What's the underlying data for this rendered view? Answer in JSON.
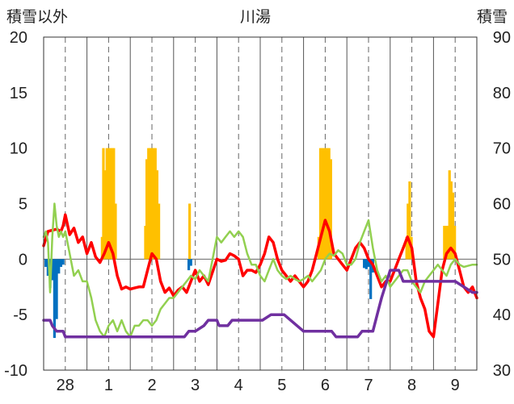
{
  "chart_data": {
    "type": "line",
    "title": "川湯",
    "y_left_label": "積雪以外",
    "y_right_label": "積雪",
    "y_left_ticks": [
      "20",
      "15",
      "10",
      "5",
      "0",
      "-5",
      "-10"
    ],
    "y_right_ticks": [
      "90",
      "80",
      "70",
      "60",
      "50",
      "40",
      "30"
    ],
    "y_left_range": [
      -10,
      20
    ],
    "y_right_range": [
      30,
      90
    ],
    "x_range": [
      -0.5,
      9.5
    ],
    "x_tick_labels": [
      {
        "x": 0,
        "label": "28"
      },
      {
        "x": 1,
        "label": "1"
      },
      {
        "x": 2,
        "label": "2"
      },
      {
        "x": 3,
        "label": "3"
      },
      {
        "x": 4,
        "label": "4"
      },
      {
        "x": 5,
        "label": "5"
      },
      {
        "x": 6,
        "label": "6"
      },
      {
        "x": 7,
        "label": "7"
      },
      {
        "x": 8,
        "label": "8"
      },
      {
        "x": 9,
        "label": "9"
      }
    ],
    "x_solid_lines": [
      -0.5,
      0.5,
      1.5,
      2.5,
      3.5,
      4.5,
      5.5,
      6.5,
      7.5,
      8.5,
      9.5
    ],
    "x_dashed_lines": [
      0,
      1,
      2,
      3,
      4,
      5,
      6,
      7,
      8,
      9
    ],
    "grid": true,
    "bars_snowfall": {
      "color": "#ffc000",
      "x": [
        0.85,
        0.88,
        0.92,
        0.96,
        1.0,
        1.04,
        1.08,
        1.12,
        1.16,
        1.85,
        1.88,
        1.92,
        1.96,
        2.0,
        2.04,
        2.08,
        2.12,
        2.16,
        2.87,
        5.85,
        5.89,
        5.93,
        5.97,
        6.01,
        6.05,
        6.09,
        6.13,
        7.88,
        7.91,
        7.95,
        7.99,
        8.75,
        8.79,
        8.83,
        8.87,
        8.91,
        8.95,
        8.99
      ],
      "values": [
        2,
        10,
        8,
        10,
        10,
        10,
        10,
        10,
        5,
        3,
        9,
        10,
        10,
        10,
        10,
        10,
        8,
        5,
        5,
        2,
        10,
        10,
        10,
        10,
        10,
        10,
        9,
        2,
        5,
        7,
        2,
        3,
        3,
        3,
        8,
        7,
        6,
        3
      ]
    },
    "bars_precip": {
      "color": "#0070c0",
      "x": [
        -0.45,
        -0.4,
        -0.35,
        -0.3,
        -0.25,
        -0.2,
        -0.15,
        -0.1,
        -0.05,
        2.85,
        2.9,
        6.9,
        6.95,
        7.0,
        7.05,
        7.1
      ],
      "values": [
        -0.7,
        -1.5,
        -2.6,
        -1.9,
        -7.1,
        -5.4,
        -1.3,
        -0.7,
        -0.5,
        -1.0,
        -0.6,
        -0.8,
        -0.9,
        -0.7,
        -3.6,
        -1.2
      ]
    },
    "series": [
      {
        "color": "#ff0000",
        "axis": "left",
        "width": 3.5,
        "x": [
          -0.5,
          -0.4,
          -0.3,
          -0.2,
          -0.1,
          -0.05,
          0.0,
          0.1,
          0.2,
          0.3,
          0.4,
          0.5,
          0.6,
          0.7,
          0.8,
          0.9,
          1.0,
          1.1,
          1.2,
          1.3,
          1.4,
          1.5,
          1.6,
          1.7,
          1.8,
          1.9,
          2.0,
          2.1,
          2.2,
          2.3,
          2.4,
          2.5,
          2.6,
          2.7,
          2.8,
          2.9,
          3.0,
          3.1,
          3.2,
          3.3,
          3.5,
          3.6,
          3.7,
          3.8,
          3.9,
          4.0,
          4.1,
          4.2,
          4.3,
          4.4,
          4.5,
          4.6,
          4.7,
          4.8,
          4.9,
          5.0,
          5.1,
          5.2,
          5.3,
          5.4,
          5.5,
          5.6,
          5.7,
          5.8,
          5.9,
          6.0,
          6.1,
          6.2,
          6.3,
          6.4,
          6.5,
          6.6,
          6.7,
          6.8,
          6.9,
          7.0,
          7.1,
          7.2,
          7.3,
          7.4,
          7.5,
          7.6,
          7.7,
          7.8,
          7.9,
          8.0,
          8.1,
          8.2,
          8.3,
          8.4,
          8.5,
          8.6,
          8.7,
          8.8,
          8.9,
          9.0,
          9.1,
          9.2,
          9.3,
          9.4,
          9.5
        ],
        "values": [
          1.2,
          2.5,
          2.6,
          2.7,
          2.5,
          3.0,
          4.0,
          2.2,
          2.8,
          1.5,
          2.0,
          0.5,
          1.5,
          0.2,
          -0.3,
          0.5,
          1.5,
          0.5,
          -1.5,
          -2.7,
          -2.5,
          -2.7,
          -2.6,
          -2.5,
          -2.5,
          -1.0,
          0.5,
          0.0,
          -2.0,
          -3.0,
          -2.6,
          -3.3,
          -2.8,
          -2.5,
          -3.0,
          -2.0,
          -1.0,
          -2.0,
          -1.5,
          -2.3,
          0.0,
          -0.2,
          -0.1,
          0.5,
          0.3,
          0.0,
          -1.5,
          -1.0,
          -1.0,
          -1.2,
          -0.5,
          0.5,
          2.0,
          1.5,
          0.0,
          -1.0,
          -1.5,
          -2.0,
          -1.5,
          -2.0,
          -2.5,
          -2.0,
          -1.0,
          0.5,
          2.0,
          3.5,
          2.5,
          0.5,
          0.0,
          -0.5,
          -1.0,
          0.0,
          1.0,
          1.5,
          1.0,
          0.0,
          -0.5,
          -1.5,
          -2.5,
          -2.0,
          -2.0,
          -1.0,
          0.0,
          1.0,
          2.0,
          1.0,
          -2.0,
          -3.5,
          -4.5,
          -6.5,
          -7.0,
          -4.0,
          -1.0,
          0.5,
          1.0,
          0.5,
          -1.0,
          -2.5,
          -3.0,
          -2.5,
          -3.5
        ]
      },
      {
        "color": "#92d050",
        "axis": "left",
        "width": 2.5,
        "x": [
          -0.5,
          -0.45,
          -0.4,
          -0.35,
          -0.3,
          -0.25,
          -0.2,
          -0.15,
          -0.1,
          -0.05,
          0.0,
          0.1,
          0.2,
          0.3,
          0.4,
          0.5,
          0.6,
          0.7,
          0.8,
          0.9,
          1.0,
          1.1,
          1.2,
          1.3,
          1.4,
          1.5,
          1.6,
          1.7,
          1.8,
          1.9,
          2.0,
          2.1,
          2.2,
          2.3,
          2.4,
          2.5,
          2.6,
          2.7,
          2.8,
          2.9,
          3.0,
          3.1,
          3.2,
          3.3,
          3.5,
          3.6,
          3.7,
          3.8,
          3.9,
          4.0,
          4.1,
          4.2,
          4.3,
          4.4,
          4.5,
          4.6,
          4.7,
          4.8,
          4.9,
          5.0,
          5.1,
          5.2,
          5.3,
          5.4,
          5.5,
          5.6,
          5.7,
          5.8,
          5.9,
          6.0,
          6.1,
          6.2,
          6.3,
          6.4,
          6.5,
          6.6,
          6.7,
          6.8,
          6.9,
          7.0,
          7.1,
          7.2,
          7.3,
          7.4,
          7.5,
          7.6,
          7.7,
          7.8,
          7.9,
          8.0,
          8.1,
          8.2,
          8.3,
          8.4,
          8.5,
          8.6,
          8.7,
          8.8,
          8.9,
          9.0,
          9.1,
          9.2,
          9.3,
          9.4,
          9.5
        ],
        "values": [
          2.0,
          2.5,
          1.5,
          -3.0,
          2.0,
          5.0,
          3.0,
          2.0,
          2.5,
          2.0,
          2.5,
          0.5,
          -1.5,
          -1.0,
          -2.0,
          -2.0,
          -3.5,
          -5.5,
          -6.5,
          -7.0,
          -6.0,
          -5.5,
          -6.5,
          -5.5,
          -6.5,
          -7.0,
          -6.0,
          -6.0,
          -5.5,
          -5.5,
          -6.0,
          -5.5,
          -4.5,
          -4.0,
          -3.5,
          -3.5,
          -3.0,
          -2.5,
          -2.0,
          -1.5,
          -1.8,
          -1.0,
          -1.5,
          -2.0,
          2.0,
          1.5,
          2.0,
          2.5,
          2.0,
          2.5,
          2.0,
          0.5,
          -0.5,
          -0.5,
          -1.5,
          -2.0,
          -1.0,
          0.0,
          -1.0,
          -1.5,
          -1.8,
          -1.5,
          -1.8,
          -2.0,
          -1.8,
          -1.5,
          -2.0,
          -1.5,
          -1.0,
          0.0,
          0.5,
          0.3,
          0.8,
          0.5,
          -0.5,
          -0.5,
          0.0,
          1.5,
          2.5,
          3.5,
          1.0,
          -1.0,
          -2.0,
          -1.5,
          -2.5,
          -2.0,
          -1.5,
          -1.0,
          -1.0,
          -2.0,
          -2.5,
          -3.0,
          -2.0,
          -1.5,
          -1.0,
          -0.5,
          -1.0,
          -1.5,
          -0.5,
          0.0,
          -0.5,
          -0.7,
          -0.6,
          -0.5,
          -0.5
        ]
      },
      {
        "color": "#7030a0",
        "axis": "right",
        "width": 3.5,
        "x": [
          -0.5,
          -0.35,
          -0.3,
          -0.2,
          -0.05,
          0.0,
          0.5,
          1.0,
          1.5,
          2.0,
          2.15,
          2.25,
          2.45,
          2.55,
          2.75,
          2.85,
          3.0,
          3.2,
          3.3,
          3.5,
          3.55,
          3.75,
          3.85,
          4.0,
          4.45,
          4.55,
          4.75,
          4.85,
          4.95,
          5.0,
          5.05,
          5.5,
          6.0,
          6.15,
          6.25,
          6.5,
          6.55,
          6.75,
          6.85,
          7.0,
          7.1,
          7.2,
          7.3,
          7.5,
          7.7,
          7.8,
          8.0,
          8.5,
          8.8,
          9.0,
          9.4,
          9.5
        ],
        "values": [
          39.0,
          39.0,
          38.0,
          37.0,
          37.0,
          36.0,
          36.0,
          36.0,
          36.0,
          36.0,
          36.0,
          36.0,
          36.0,
          36.0,
          36.0,
          37.0,
          37.0,
          38.0,
          39.0,
          39.0,
          38.0,
          38.0,
          39.0,
          39.0,
          39.0,
          39.0,
          40.0,
          40.0,
          40.0,
          40.0,
          40.0,
          37.0,
          37.0,
          37.0,
          36.0,
          36.0,
          36.0,
          36.0,
          37.0,
          37.0,
          37.0,
          40.0,
          43.0,
          48.0,
          48.0,
          46.0,
          46.0,
          46.0,
          46.0,
          46.0,
          44.0,
          44.0
        ]
      }
    ]
  }
}
